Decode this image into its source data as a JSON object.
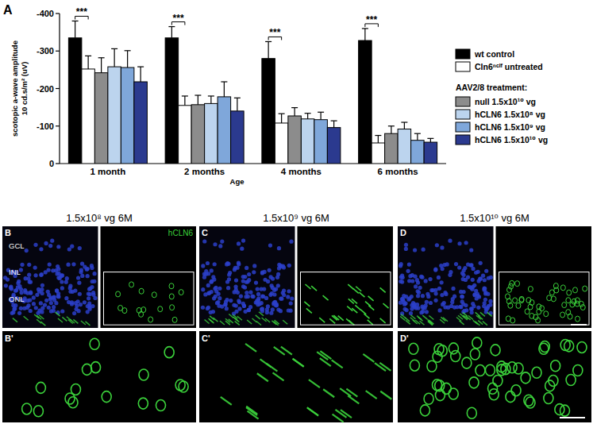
{
  "chart_data": {
    "type": "bar",
    "panel_label": "A",
    "ylabel": [
      "scotopic a-wave amplitude",
      "10 cd.s/m² (uV)"
    ],
    "xlabel": "Age",
    "categories": [
      "1 month",
      "2 months",
      "4 months",
      "6 months"
    ],
    "ylim": [
      0,
      -400
    ],
    "yticks": [
      -400,
      -300,
      -200,
      -100,
      0
    ],
    "grid": false,
    "legend": "right",
    "legend_subtitle": "AAV2/8 treatment:",
    "annotations": [
      {
        "text": "***",
        "category": 0
      },
      {
        "text": "***",
        "category": 1
      },
      {
        "text": "***",
        "category": 2
      },
      {
        "text": "***",
        "category": 3
      }
    ],
    "series": [
      {
        "name": "wt control",
        "color": "#000000",
        "values": [
          -335,
          -335,
          -280,
          -328
        ],
        "errors": [
          45,
          30,
          45,
          32
        ]
      },
      {
        "name": "Cln6ⁿᶜˡᶠ untreated",
        "color": "#ffffff",
        "values": [
          -252,
          -155,
          -108,
          -55
        ],
        "errors": [
          35,
          25,
          25,
          20
        ]
      },
      {
        "name": "null 1.5x10¹⁰ vg",
        "color": "#8c8c8c",
        "values": [
          -242,
          -157,
          -127,
          -80
        ],
        "errors": [
          40,
          25,
          22,
          20
        ]
      },
      {
        "name": "hCLN6 1.5x10⁸ vg",
        "color": "#bcd4ee",
        "values": [
          -258,
          -160,
          -119,
          -92
        ],
        "errors": [
          48,
          20,
          15,
          18
        ]
      },
      {
        "name": "hCLN6 1.5x10⁹ vg",
        "color": "#7fa7da",
        "values": [
          -256,
          -178,
          -117,
          -62
        ],
        "errors": [
          45,
          40,
          20,
          18
        ]
      },
      {
        "name": "hCLN6 1.5x10¹⁰ vg",
        "color": "#2b3a8f",
        "values": [
          -218,
          -140,
          -96,
          -57
        ],
        "errors": [
          40,
          35,
          18,
          10
        ]
      }
    ]
  },
  "image_panels": {
    "layer_labels": [
      "GCL",
      "INL",
      "ONL"
    ],
    "channel_label": "hCLN6",
    "panels": [
      {
        "letter": "B",
        "zoom_letter": "B'",
        "title": "1.5x10⁸ vg 6M"
      },
      {
        "letter": "C",
        "zoom_letter": "C'",
        "title": "1.5x10⁹ vg 6M"
      },
      {
        "letter": "D",
        "zoom_letter": "D'",
        "title": "1.5x10¹⁰ vg 6M"
      }
    ]
  }
}
